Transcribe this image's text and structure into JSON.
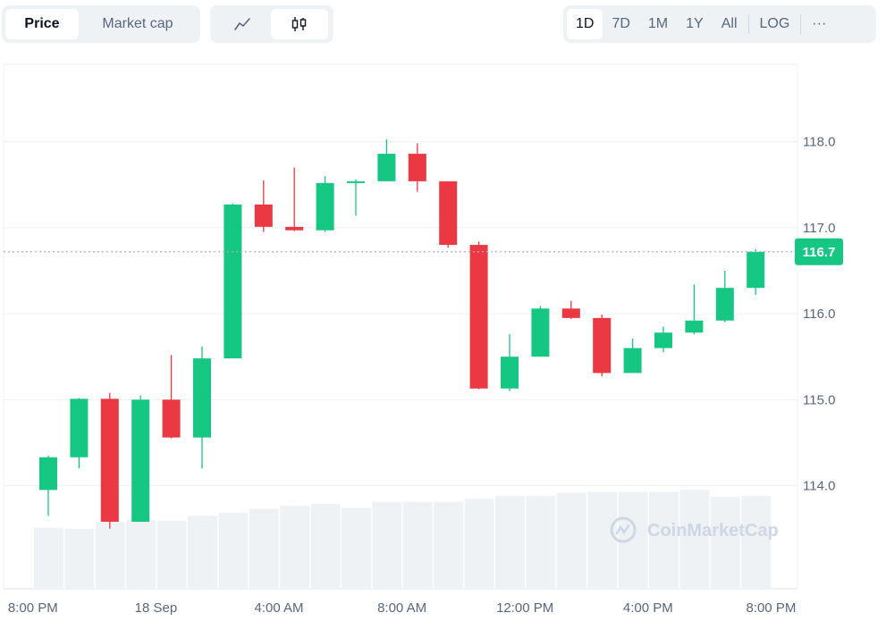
{
  "metric_tabs": [
    {
      "label": "Price",
      "active": true
    },
    {
      "label": "Market cap",
      "active": false
    }
  ],
  "chart_type_tabs": [
    {
      "icon": "line-chart-icon",
      "active": false
    },
    {
      "icon": "candlestick-icon",
      "active": true
    }
  ],
  "range_tabs": [
    {
      "label": "1D",
      "active": true
    },
    {
      "label": "7D",
      "active": false
    },
    {
      "label": "1M",
      "active": false
    },
    {
      "label": "1Y",
      "active": false
    },
    {
      "label": "All",
      "active": false
    },
    {
      "label": "LOG",
      "active": false
    },
    {
      "label": "···",
      "active": false
    }
  ],
  "watermark": "CoinMarketCap",
  "colors": {
    "up": "#16c784",
    "down": "#ea3943",
    "volume": "#eff2f5",
    "grid": "#eff2f5",
    "axis_text": "#58667e"
  },
  "chart_data": {
    "type": "candlestick",
    "current_price": "116.7",
    "current_value": 116.72,
    "ylim": [
      112.8,
      118.9
    ],
    "yticks": [
      {
        "value": 114.0,
        "label": "114.0"
      },
      {
        "value": 115.0,
        "label": "115.0"
      },
      {
        "value": 116.0,
        "label": "116.0"
      },
      {
        "value": 117.0,
        "label": "117.0"
      },
      {
        "value": 118.0,
        "label": "118.0"
      }
    ],
    "xticks": [
      {
        "index": -0.5,
        "label": "8:00 PM"
      },
      {
        "index": 3.5,
        "label": "18 Sep"
      },
      {
        "index": 7.5,
        "label": "4:00 AM"
      },
      {
        "index": 11.5,
        "label": "8:00 AM"
      },
      {
        "index": 15.5,
        "label": "12:00 PM"
      },
      {
        "index": 19.5,
        "label": "4:00 PM"
      },
      {
        "index": 23.5,
        "label": "8:00 PM"
      }
    ],
    "candles": [
      {
        "o": 113.95,
        "h": 114.35,
        "l": 113.65,
        "c": 114.33
      },
      {
        "o": 114.33,
        "h": 115.02,
        "l": 114.2,
        "c": 115.01
      },
      {
        "o": 115.01,
        "h": 115.08,
        "l": 113.5,
        "c": 113.58
      },
      {
        "o": 113.58,
        "h": 115.05,
        "l": 113.58,
        "c": 115.0
      },
      {
        "o": 115.0,
        "h": 115.52,
        "l": 114.55,
        "c": 114.56
      },
      {
        "o": 114.56,
        "h": 115.62,
        "l": 114.2,
        "c": 115.48
      },
      {
        "o": 115.48,
        "h": 117.28,
        "l": 115.48,
        "c": 117.27
      },
      {
        "o": 117.27,
        "h": 117.55,
        "l": 116.95,
        "c": 117.01
      },
      {
        "o": 117.01,
        "h": 117.7,
        "l": 116.96,
        "c": 116.97
      },
      {
        "o": 116.97,
        "h": 117.6,
        "l": 116.95,
        "c": 117.52
      },
      {
        "o": 117.52,
        "h": 117.56,
        "l": 117.14,
        "c": 117.54
      },
      {
        "o": 117.54,
        "h": 118.03,
        "l": 117.54,
        "c": 117.86
      },
      {
        "o": 117.86,
        "h": 117.98,
        "l": 117.42,
        "c": 117.54
      },
      {
        "o": 117.54,
        "h": 117.54,
        "l": 116.77,
        "c": 116.8
      },
      {
        "o": 116.8,
        "h": 116.84,
        "l": 115.12,
        "c": 115.13
      },
      {
        "o": 115.13,
        "h": 115.76,
        "l": 115.1,
        "c": 115.5
      },
      {
        "o": 115.5,
        "h": 116.09,
        "l": 115.5,
        "c": 116.06
      },
      {
        "o": 116.06,
        "h": 116.15,
        "l": 115.94,
        "c": 115.95
      },
      {
        "o": 115.95,
        "h": 115.99,
        "l": 115.27,
        "c": 115.31
      },
      {
        "o": 115.31,
        "h": 115.71,
        "l": 115.31,
        "c": 115.6
      },
      {
        "o": 115.6,
        "h": 115.85,
        "l": 115.55,
        "c": 115.78
      },
      {
        "o": 115.78,
        "h": 116.34,
        "l": 115.76,
        "c": 115.92
      },
      {
        "o": 115.92,
        "h": 116.5,
        "l": 115.9,
        "c": 116.3
      },
      {
        "o": 116.3,
        "h": 116.75,
        "l": 116.22,
        "c": 116.72
      }
    ],
    "volume": [
      0.61,
      0.6,
      0.67,
      0.69,
      0.68,
      0.73,
      0.76,
      0.8,
      0.83,
      0.85,
      0.81,
      0.87,
      0.87,
      0.87,
      0.9,
      0.93,
      0.93,
      0.96,
      0.97,
      0.97,
      0.97,
      0.99,
      0.92,
      0.93
    ]
  }
}
